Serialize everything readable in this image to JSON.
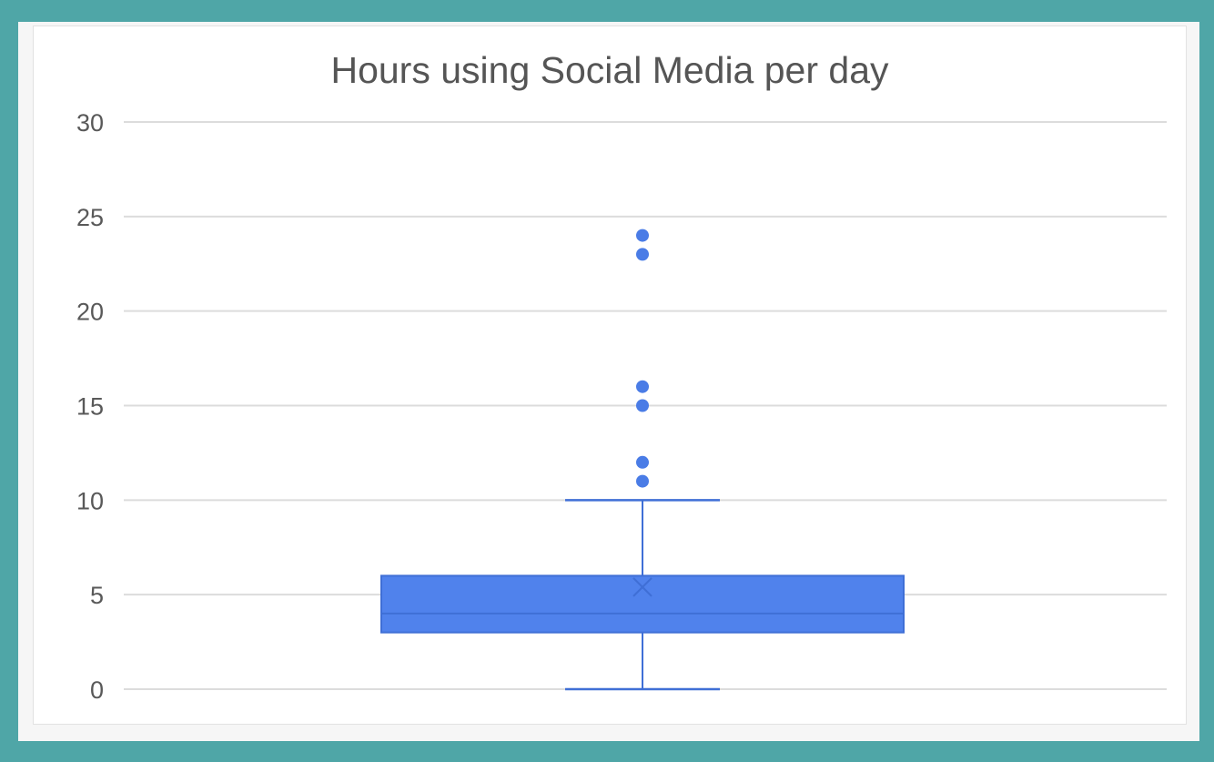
{
  "colors": {
    "frame": "#4fa6a7",
    "box_fill": "#5082ec",
    "box_stroke": "#3f6fd6",
    "outlier": "#4a7ce6",
    "grid": "#dcdcdc",
    "title_text": "#555555",
    "tick_text": "#595959"
  },
  "chart_data": {
    "type": "box",
    "title": "Hours using Social Media per day",
    "xlabel": "",
    "ylabel": "",
    "ylim": [
      0,
      30
    ],
    "yticks": [
      0,
      5,
      10,
      15,
      20,
      25,
      30
    ],
    "grid": true,
    "legend": "none",
    "series": [
      {
        "min": 0,
        "q1": 3,
        "median": 4,
        "mean": 5.4,
        "q3": 6,
        "max": 10,
        "outliers": [
          11,
          12,
          15,
          16,
          23,
          24
        ]
      }
    ]
  }
}
